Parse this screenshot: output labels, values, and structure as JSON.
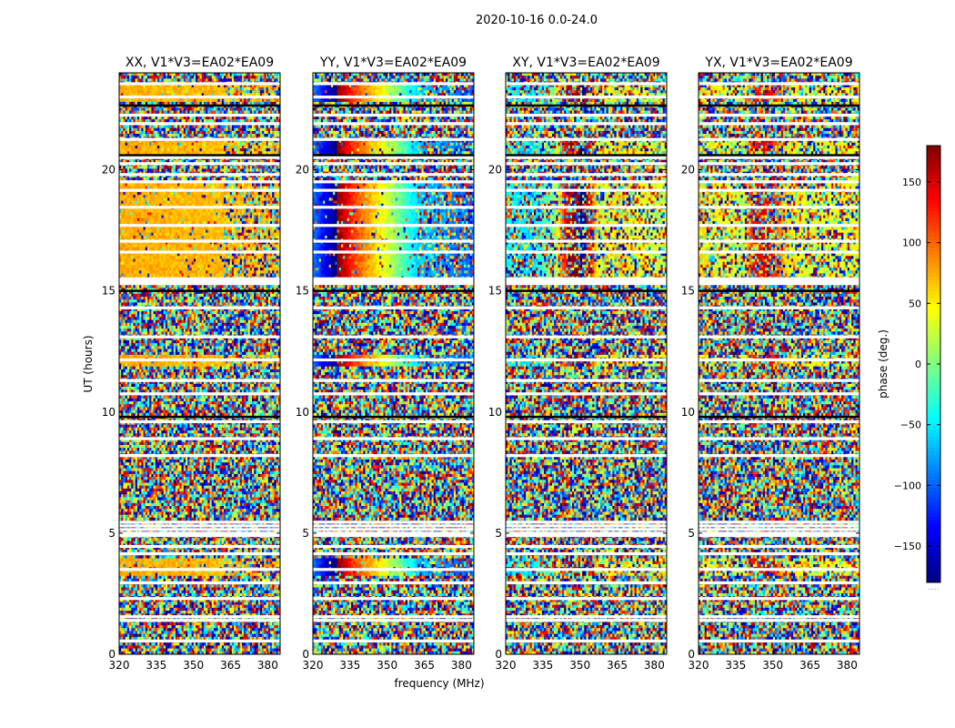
{
  "figure": {
    "suptitle": "2020-10-16 0.0-24.0",
    "xlabel": "frequency (MHz)",
    "ylabel": "UT (hours)",
    "colorbar_label": "phase (deg.)",
    "colorbar_dots": "....."
  },
  "chart_data": {
    "type": "heatmap",
    "title": "2020-10-16 0.0-24.0",
    "xlabel": "frequency (MHz)",
    "ylabel": "UT (hours)",
    "xlim": [
      320,
      385
    ],
    "ylim": [
      0,
      24
    ],
    "x_ticks": [
      320,
      335,
      350,
      365,
      380
    ],
    "y_ticks": [
      0,
      5,
      10,
      15,
      20
    ],
    "colormap": "jet",
    "colorbar": {
      "label": "phase (deg.)",
      "range": [
        -180,
        180
      ],
      "ticks": [
        -150,
        -100,
        -50,
        0,
        50,
        100,
        150
      ],
      "tick_labels": [
        "−150",
        "−100",
        "−50",
        "0",
        "50",
        "100",
        "150"
      ]
    },
    "flagged_rows_ut": [
      0.55,
      1.4,
      1.55,
      2.3,
      2.95,
      3.5,
      4.15,
      4.45,
      4.9,
      5.0,
      5.15,
      5.3,
      5.45,
      8.2,
      8.9,
      9.6,
      10.75,
      11.3,
      12.15,
      13.1,
      14.3,
      15.3,
      15.4,
      15.5,
      16.6,
      17.05,
      17.7,
      18.45,
      19.15,
      19.5,
      19.8,
      20.25,
      20.5,
      21.25,
      21.9,
      22.25,
      23.0,
      23.55
    ],
    "dark_rows_ut": [
      9.8,
      15.0,
      20.6,
      22.65
    ],
    "coherent_spans_ut": [
      [
        3.2,
        4.0
      ],
      [
        11.9,
        12.4
      ],
      [
        15.3,
        19.6
      ],
      [
        20.6,
        21.2
      ],
      [
        22.8,
        23.5
      ]
    ],
    "panels": [
      {
        "title": "XX, V1*V3=EA02*EA09",
        "polarization": "XX",
        "baseline": "EA02*EA09",
        "phase_vs_frequency_deg": {
          "frequency_mhz": [
            320,
            330,
            340,
            350,
            360,
            362,
            380
          ],
          "phase": [
            75,
            73,
            71,
            70,
            68,
            69,
            70
          ]
        }
      },
      {
        "title": "YY, V1*V3=EA02*EA09",
        "polarization": "YY",
        "baseline": "EA02*EA09",
        "phase_vs_frequency_deg": {
          "frequency_mhz": [
            320,
            327,
            332,
            336,
            342,
            350,
            357,
            362,
            380
          ],
          "phase": [
            -90,
            -160,
            160,
            120,
            80,
            30,
            -20,
            -60,
            -100
          ]
        }
      },
      {
        "title": "XY, V1*V3=EA02*EA09",
        "polarization": "XY",
        "baseline": "EA02*EA09",
        "phase_vs_frequency_deg": {
          "frequency_mhz": [
            320,
            330,
            340,
            345,
            352,
            358,
            365,
            380
          ],
          "phase": [
            -40,
            -60,
            10,
            160,
            -170,
            20,
            60,
            30
          ]
        }
      },
      {
        "title": "YX, V1*V3=EA02*EA09",
        "polarization": "YX",
        "baseline": "EA02*EA09",
        "phase_vs_frequency_deg": {
          "frequency_mhz": [
            320,
            330,
            338,
            342,
            348,
            355,
            365,
            380
          ],
          "phase": [
            60,
            40,
            20,
            130,
            150,
            60,
            30,
            40
          ]
        }
      }
    ]
  }
}
